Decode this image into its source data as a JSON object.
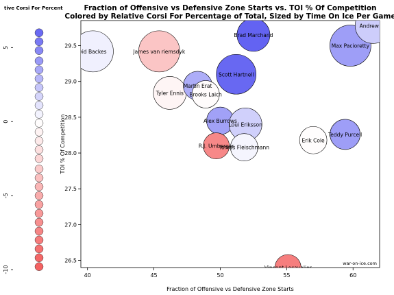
{
  "chart_data": {
    "type": "scatter",
    "title_line1": "Fraction of Offensive vs Defensive Zone Starts vs. TOI % Of Competition",
    "title_line2": "Colored by Relative Corsi For Percentage of Total, Sized by Time On Ice Per Game",
    "xlabel": "Fraction of Offensive vs Defensive Zone Starts",
    "ylabel": "TOI % Of Competition",
    "xlim": [
      39.5,
      62.0
    ],
    "ylim": [
      26.4,
      29.85
    ],
    "xticks": [
      40,
      45,
      50,
      55,
      60
    ],
    "yticks": [
      26.5,
      27.0,
      27.5,
      28.0,
      28.5,
      29.0,
      29.5
    ],
    "watermark": "war-on-ice.com",
    "legend_title": "tive Corsi For Percent",
    "legend_ticks": [
      5,
      0,
      -5,
      -10
    ],
    "legend_range": [
      -10,
      6.5
    ],
    "legend_levels": [
      6,
      5.4,
      4.8,
      4.1,
      3.5,
      2.9,
      2.3,
      1.7,
      1.1,
      0.5,
      -0.1,
      -0.7,
      -1.3,
      -1.9,
      -2.5,
      -3.2,
      -3.8,
      -4.4,
      -5,
      -5.6,
      -6.2,
      -6.8,
      -7.4,
      -8,
      -8.6,
      -9.2,
      -9.8
    ],
    "color_low": "#f46262",
    "color_mid": "#ffffff",
    "color_high": "#6363f2",
    "points": [
      {
        "name": "David Backes",
        "label": "vid Backes",
        "x": 40.4,
        "y": 29.42,
        "corsi": 0.6,
        "size": 30
      },
      {
        "name": "James van riemsdyk",
        "label": "James van riemsdyk",
        "x": 45.4,
        "y": 29.42,
        "corsi": -3.5,
        "size": 30
      },
      {
        "name": "Tyler Ennis",
        "label": "Tyler Ennis",
        "x": 46.2,
        "y": 28.84,
        "corsi": -0.6,
        "size": 24
      },
      {
        "name": "Martin Erat",
        "label": "Martin Erat",
        "x": 48.3,
        "y": 28.94,
        "corsi": 3.3,
        "size": 21
      },
      {
        "name": "Brooks Laich",
        "label": "Brooks Laich",
        "x": 48.9,
        "y": 28.82,
        "corsi": -0.2,
        "size": 20
      },
      {
        "name": "Brad Marchand",
        "label": "Brad Marchand",
        "x": 52.5,
        "y": 29.65,
        "corsi": 6.3,
        "size": 24
      },
      {
        "name": "Scott Hartnell",
        "label": "Scott Hartnell",
        "x": 51.2,
        "y": 29.1,
        "corsi": 6.1,
        "size": 29
      },
      {
        "name": "Alex Burrows",
        "label": "Alex Burrows",
        "x": 50.0,
        "y": 28.45,
        "corsi": 3.8,
        "size": 20
      },
      {
        "name": "Loui Eriksson",
        "label": "Loui Eriksson",
        "x": 51.9,
        "y": 28.4,
        "corsi": 1.9,
        "size": 24
      },
      {
        "name": "R.J. Umberger",
        "label": "R.J. Umberger",
        "x": 49.7,
        "y": 28.1,
        "corsi": -7.2,
        "size": 19
      },
      {
        "name": "Tomas Fleischmann",
        "label": "Tomas Fleischmann",
        "x": 51.8,
        "y": 28.08,
        "corsi": 0.4,
        "size": 20
      },
      {
        "name": "Erik Cole",
        "label": "Erik Cole",
        "x": 57.0,
        "y": 28.18,
        "corsi": -0.1,
        "size": 20
      },
      {
        "name": "Teddy Purcell",
        "label": "Teddy Purcell",
        "x": 59.4,
        "y": 28.26,
        "corsi": 3.9,
        "size": 22
      },
      {
        "name": "Max Pacioretty",
        "label": "Max Pacioretty",
        "x": 59.8,
        "y": 29.5,
        "corsi": 3.9,
        "size": 30
      },
      {
        "name": "Andrew Ladd",
        "label": "Andrew La",
        "x": 61.5,
        "y": 29.78,
        "corsi": 2.0,
        "size": 26
      },
      {
        "name": "Vincent Lecavalier",
        "label": "Vincent Lecavalier",
        "x": 55.1,
        "y": 26.4,
        "corsi": -7.8,
        "size": 19
      }
    ]
  }
}
